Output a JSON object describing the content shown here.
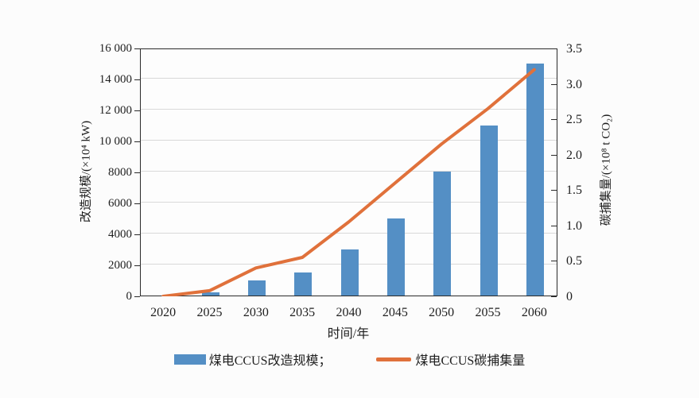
{
  "figure": {
    "x_axis_title": "时间/年",
    "left_axis_title": "改造规模/(×10⁴ kW)",
    "right_axis_title": "碳捕集量/(×10⁸ t CO₂)"
  },
  "legend": {
    "items": [
      {
        "label": "煤电CCUS改造规模；",
        "color": "#548fc5",
        "marker": "bar-swatch"
      },
      {
        "label": "煤电CCUS碳捕集量",
        "color": "#e0713b",
        "marker": "line-swatch"
      }
    ]
  },
  "colors": {
    "bar": "#548fc5",
    "line": "#e0713b",
    "grid": "#d9d9d9",
    "frame": "#2a2a2a",
    "background": "#fcfcfc"
  },
  "chart_data": {
    "type": "bar",
    "title": "",
    "xlabel": "时间/年",
    "categories": [
      "2020",
      "2025",
      "2030",
      "2035",
      "2040",
      "2045",
      "2050",
      "2055",
      "2060"
    ],
    "series": [
      {
        "name": "煤电CCUS改造规模",
        "kind": "bar",
        "axis": "left",
        "values": [
          0,
          200,
          1000,
          1500,
          3000,
          5000,
          8000,
          11000,
          15000
        ]
      },
      {
        "name": "煤电CCUS碳捕集量",
        "kind": "line",
        "axis": "right",
        "values": [
          0,
          0.08,
          0.4,
          0.55,
          1.05,
          1.6,
          2.15,
          2.65,
          3.2
        ]
      }
    ],
    "left_axis": {
      "label": "改造规模/(×10⁴ kW)",
      "range": [
        0,
        16000
      ],
      "tick_step": 2000,
      "tick_labels": [
        "16 000",
        "14 000",
        "12 000",
        "10 000",
        "8000",
        "6000",
        "4000",
        "2000",
        "0"
      ]
    },
    "right_axis": {
      "label": "碳捕集量/(×10⁸ t CO₂)",
      "range": [
        0,
        3.5
      ],
      "tick_step": 0.5,
      "tick_labels": [
        "3.5",
        "3.0",
        "2.5",
        "2.0",
        "1.5",
        "1.0",
        "0.5",
        "0"
      ]
    },
    "grid": "horizontal",
    "legend_position": "bottom"
  }
}
